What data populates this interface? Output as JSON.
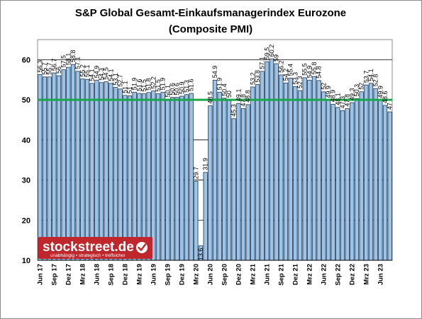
{
  "chart_data": {
    "type": "bar",
    "title_line1": "S&P Global Gesamt-Einkaufsmanagerindex Eurozone",
    "title_line2": "(Composite PMI)",
    "xlabel": "",
    "ylabel": "",
    "ylim": [
      10,
      65
    ],
    "yticks": [
      "10",
      "20",
      "30",
      "40",
      "50",
      "60"
    ],
    "reference_line": 50,
    "reference_color": "#1aa64a",
    "bar_color": "#9dc3e6",
    "grid": true,
    "legend": "none",
    "categories": [
      "Jun 17",
      "Jul 17",
      "Aug 17",
      "Sep 17",
      "Okt 17",
      "Nov 17",
      "Dez 17",
      "Jan 18",
      "Feb 18",
      "Mrz 18",
      "Apr 18",
      "Mai 18",
      "Jun 18",
      "Jul 18",
      "Aug 18",
      "Sep 18",
      "Okt 18",
      "Nov 18",
      "Dez 18",
      "Jan 19",
      "Feb 19",
      "Mrz 19",
      "Apr 19",
      "Mai 19",
      "Jun 19",
      "Jul 19",
      "Aug 19",
      "Sep 19",
      "Okt 19",
      "Nov 19",
      "Dez 19",
      "Jan 20",
      "Feb 20",
      "Mrz 20",
      "Apr 20",
      "Mai 20",
      "Jun 20",
      "Jul 20",
      "Aug 20",
      "Sep 20",
      "Okt 20",
      "Nov 20",
      "Dez 20",
      "Jan 21",
      "Feb 21",
      "Mrz 21",
      "Apr 21",
      "Mai 21",
      "Jun 21",
      "Jul 21",
      "Aug 21",
      "Sep 21",
      "Okt 21",
      "Nov 21",
      "Dez 21",
      "Jan 22",
      "Feb 22",
      "Mrz 22",
      "Apr 22",
      "Mai 22",
      "Jun 22",
      "Jul 22",
      "Aug 22",
      "Sep 22",
      "Okt 22",
      "Nov 22",
      "Dez 22",
      "Jan 23",
      "Feb 23",
      "Mrz 23",
      "Apr 23",
      "Mai 23",
      "Jun 23",
      "Jul 23",
      "Aug 23"
    ],
    "xtick_labels": [
      "Jun 17",
      "Sep 17",
      "Dez 17",
      "Mrz 18",
      "Jun 18",
      "Sep 18",
      "Dez 18",
      "Mrz 19",
      "Jun 19",
      "Sep 19",
      "Dez 19",
      "Mrz 20",
      "Jun 20",
      "Sep 20",
      "Dez 20",
      "Mrz 21",
      "Jun 21",
      "Sep 21",
      "Dez 21",
      "Mrz 22",
      "Jun 22",
      "Sep 22",
      "Dez 22",
      "Mrz 23",
      "Jun 23"
    ],
    "values": [
      56.3,
      55.7,
      55.7,
      56.7,
      56.0,
      57.5,
      58.1,
      58.8,
      57.1,
      55.2,
      55.1,
      54.1,
      54.9,
      54.3,
      54.5,
      54.1,
      53.1,
      52.7,
      51.1,
      51.0,
      51.9,
      51.6,
      51.5,
      51.8,
      52.2,
      51.5,
      51.9,
      50.1,
      50.6,
      50.6,
      50.9,
      51.3,
      51.6,
      29.7,
      13.6,
      31.9,
      48.5,
      54.9,
      51.9,
      50.4,
      50.0,
      45.3,
      49.1,
      47.8,
      48.8,
      53.2,
      53.8,
      57.1,
      59.5,
      60.2,
      59.0,
      56.2,
      54.2,
      55.4,
      53.3,
      52.3,
      55.5,
      54.9,
      55.8,
      54.8,
      52.0,
      49.9,
      48.9,
      48.1,
      47.3,
      47.8,
      49.3,
      50.3,
      52.0,
      53.7,
      54.1,
      52.8,
      49.9,
      48.6,
      47.0
    ],
    "value_labels": [
      "56.3",
      "55.7",
      "55.7",
      "56.7",
      "56",
      "57.5",
      "58.1",
      "58.8",
      "57.1",
      "55.2",
      "55.1",
      "54.1",
      "54.9",
      "54.3",
      "54.5",
      "54.1",
      "53.1",
      "52.7",
      "51.1",
      "51",
      "51.9",
      "51.6",
      "51.5",
      "51.8",
      "52.2",
      "51.5",
      "51.9",
      "50.1",
      "50.6",
      "50.6",
      "50.9",
      "51.3",
      "51.6",
      "29.7",
      "13.6",
      "31.9",
      "48.5",
      "54.9",
      "51.9",
      "50.4",
      "50",
      "45.3",
      "49.1",
      "47.8",
      "48.8",
      "53.2",
      "53.8",
      "57.1",
      "59.5",
      "60.2",
      "59",
      "56.2",
      "54.2",
      "55.4",
      "53.3",
      "52.3",
      "55.5",
      "54.9",
      "55.8",
      "54.8",
      "52",
      "49.9",
      "48.9",
      "48.1",
      "47.3",
      "47.8",
      "49.3",
      "50.3",
      "52",
      "53.7",
      "54.1",
      "52.8",
      "49.9",
      "48.6",
      "47"
    ]
  },
  "watermark": {
    "logo_text": "stockstreet.de",
    "tagline": "unabhängig • strategisch • treffsicher",
    "bg_color": "#c0272d"
  }
}
